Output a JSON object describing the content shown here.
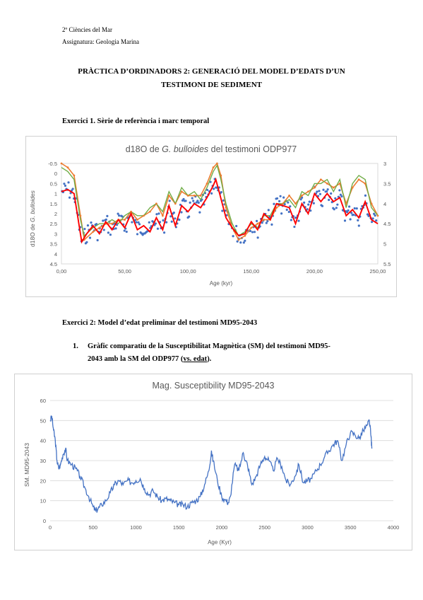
{
  "header": {
    "line1": "2º Ciències del Mar",
    "line2": "Assignatura: Geologia Marina"
  },
  "doc_title": {
    "line1": "PRÀCTICA D’ORDINADORS 2: GENERACIÓ DEL MODEL D’EDATS D’UN",
    "line2": "TESTIMONI DE SEDIMENT"
  },
  "ex1": {
    "heading": "Exercici 1. Sèrie de referència i marc temporal"
  },
  "ex2": {
    "heading": "Exercici 2: Model d’edat preliminar del testimoni MD95-2043",
    "item_number": "1.",
    "item_text_line1": "Gràfic comparatiu de la Susceptibilitat Magnètica (SM) del testimoni MD95-",
    "item_text_line2_a": "2043 amb la SM del ODP977 (",
    "item_text_line2_u": "vs. edat",
    "item_text_line2_b": ")."
  },
  "chart_data": [
    {
      "type": "scatter",
      "title_pre": "d18O de ",
      "title_italic": "G. bulloides",
      "title_post": " del testimoni ODP977",
      "xlabel": "Age (kyr)",
      "ylabel_pre": "d18O de ",
      "ylabel_italic": "G. bulloides",
      "xlim": [
        0,
        250
      ],
      "x_ticks": [
        "0,00",
        "50,00",
        "100,00",
        "150,00",
        "200,00",
        "250,00"
      ],
      "ylim_left": [
        -0.5,
        4.5
      ],
      "y_left_ticks": [
        "-0.5",
        "0",
        "0.5",
        "1",
        "1.5",
        "2",
        "2.5",
        "3",
        "3.5",
        "4",
        "4.5"
      ],
      "ylim_right": [
        3,
        5.5
      ],
      "y_right_ticks": [
        "3",
        "3.5",
        "4",
        "4.5",
        "5",
        "5.5"
      ],
      "colors": {
        "points": "#4472c4",
        "smooth": "#ff0000",
        "orange": "#ed7d31",
        "green": "#70ad47"
      },
      "series_smooth": [
        [
          0,
          0.9
        ],
        [
          5,
          0.8
        ],
        [
          10,
          1.0
        ],
        [
          13,
          2.2
        ],
        [
          16,
          3.4
        ],
        [
          20,
          3.0
        ],
        [
          25,
          2.6
        ],
        [
          30,
          3.0
        ],
        [
          35,
          2.4
        ],
        [
          40,
          2.8
        ],
        [
          45,
          2.3
        ],
        [
          50,
          2.7
        ],
        [
          55,
          2.0
        ],
        [
          60,
          2.8
        ],
        [
          65,
          2.6
        ],
        [
          70,
          2.9
        ],
        [
          75,
          2.2
        ],
        [
          80,
          2.8
        ],
        [
          85,
          1.6
        ],
        [
          90,
          2.6
        ],
        [
          95,
          1.6
        ],
        [
          100,
          1.9
        ],
        [
          105,
          1.5
        ],
        [
          110,
          1.7
        ],
        [
          115,
          1.2
        ],
        [
          120,
          0.6
        ],
        [
          122,
          0.3
        ],
        [
          125,
          1.0
        ],
        [
          130,
          2.2
        ],
        [
          135,
          2.7
        ],
        [
          140,
          3.1
        ],
        [
          145,
          3.0
        ],
        [
          150,
          2.4
        ],
        [
          155,
          2.8
        ],
        [
          160,
          2.0
        ],
        [
          165,
          2.3
        ],
        [
          170,
          1.5
        ],
        [
          175,
          1.6
        ],
        [
          180,
          1.7
        ],
        [
          185,
          2.5
        ],
        [
          190,
          1.5
        ],
        [
          195,
          2.0
        ],
        [
          200,
          1.0
        ],
        [
          205,
          1.4
        ],
        [
          210,
          1.0
        ],
        [
          215,
          1.4
        ],
        [
          220,
          1.2
        ],
        [
          225,
          2.1
        ],
        [
          230,
          1.8
        ],
        [
          235,
          2.2
        ],
        [
          240,
          1.4
        ],
        [
          245,
          2.3
        ],
        [
          250,
          2.5
        ]
      ],
      "series_orange": [
        [
          0,
          3.0
        ],
        [
          5,
          3.1
        ],
        [
          10,
          3.3
        ],
        [
          15,
          4.3
        ],
        [
          18,
          4.9
        ],
        [
          25,
          4.7
        ],
        [
          30,
          4.6
        ],
        [
          35,
          4.5
        ],
        [
          40,
          4.5
        ],
        [
          45,
          4.4
        ],
        [
          50,
          4.4
        ],
        [
          55,
          4.2
        ],
        [
          60,
          4.4
        ],
        [
          65,
          4.3
        ],
        [
          70,
          4.2
        ],
        [
          75,
          4.0
        ],
        [
          80,
          4.3
        ],
        [
          85,
          3.8
        ],
        [
          90,
          4.0
        ],
        [
          95,
          3.7
        ],
        [
          100,
          3.8
        ],
        [
          105,
          3.8
        ],
        [
          110,
          3.8
        ],
        [
          115,
          3.5
        ],
        [
          120,
          3.1
        ],
        [
          123,
          3.0
        ],
        [
          126,
          3.3
        ],
        [
          130,
          4.1
        ],
        [
          135,
          4.6
        ],
        [
          140,
          4.9
        ],
        [
          145,
          4.8
        ],
        [
          150,
          4.6
        ],
        [
          155,
          4.5
        ],
        [
          160,
          4.4
        ],
        [
          165,
          4.4
        ],
        [
          170,
          4.1
        ],
        [
          175,
          4.0
        ],
        [
          180,
          3.8
        ],
        [
          185,
          4.0
        ],
        [
          190,
          3.8
        ],
        [
          195,
          3.7
        ],
        [
          200,
          3.6
        ],
        [
          205,
          3.4
        ],
        [
          210,
          3.5
        ],
        [
          215,
          3.6
        ],
        [
          220,
          3.5
        ],
        [
          225,
          4.0
        ],
        [
          230,
          3.6
        ],
        [
          235,
          3.4
        ],
        [
          240,
          3.5
        ],
        [
          245,
          4.0
        ],
        [
          250,
          4.3
        ]
      ],
      "series_green": [
        [
          0,
          3.1
        ],
        [
          5,
          3.2
        ],
        [
          10,
          3.4
        ],
        [
          15,
          4.4
        ],
        [
          18,
          4.8
        ],
        [
          25,
          4.6
        ],
        [
          30,
          4.5
        ],
        [
          35,
          4.5
        ],
        [
          40,
          4.4
        ],
        [
          45,
          4.5
        ],
        [
          50,
          4.3
        ],
        [
          55,
          4.2
        ],
        [
          60,
          4.3
        ],
        [
          65,
          4.3
        ],
        [
          70,
          4.1
        ],
        [
          75,
          4.0
        ],
        [
          80,
          4.2
        ],
        [
          85,
          3.7
        ],
        [
          90,
          4.0
        ],
        [
          95,
          3.6
        ],
        [
          100,
          3.8
        ],
        [
          105,
          3.7
        ],
        [
          110,
          3.9
        ],
        [
          115,
          3.6
        ],
        [
          120,
          3.2
        ],
        [
          123,
          3.05
        ],
        [
          126,
          3.4
        ],
        [
          130,
          4.0
        ],
        [
          135,
          4.5
        ],
        [
          140,
          4.8
        ],
        [
          145,
          4.7
        ],
        [
          150,
          4.5
        ],
        [
          155,
          4.6
        ],
        [
          160,
          4.3
        ],
        [
          165,
          4.3
        ],
        [
          170,
          4.0
        ],
        [
          175,
          4.0
        ],
        [
          180,
          3.9
        ],
        [
          185,
          4.1
        ],
        [
          190,
          3.7
        ],
        [
          195,
          3.8
        ],
        [
          200,
          3.5
        ],
        [
          205,
          3.5
        ],
        [
          210,
          3.4
        ],
        [
          215,
          3.7
        ],
        [
          220,
          3.4
        ],
        [
          225,
          4.1
        ],
        [
          230,
          3.5
        ],
        [
          235,
          3.3
        ],
        [
          240,
          3.4
        ],
        [
          245,
          4.1
        ],
        [
          250,
          4.3
        ]
      ]
    },
    {
      "type": "line",
      "title": "Mag. Susceptibility MD95-2043",
      "xlabel": "Age (Kyr)",
      "ylabel": "SM. MD95-2043",
      "xlim": [
        0,
        4000
      ],
      "x_ticks": [
        "0",
        "500",
        "1000",
        "1500",
        "2000",
        "2500",
        "3000",
        "3500",
        "4000"
      ],
      "ylim": [
        0,
        60
      ],
      "y_ticks": [
        "0",
        "10",
        "20",
        "30",
        "40",
        "50",
        "60"
      ],
      "color": "#4472c4",
      "points": [
        [
          0,
          50
        ],
        [
          20,
          52
        ],
        [
          40,
          45
        ],
        [
          60,
          40
        ],
        [
          80,
          30
        ],
        [
          100,
          26
        ],
        [
          120,
          28
        ],
        [
          150,
          33
        ],
        [
          180,
          36
        ],
        [
          200,
          30
        ],
        [
          250,
          28
        ],
        [
          300,
          26
        ],
        [
          350,
          22
        ],
        [
          400,
          17
        ],
        [
          450,
          12
        ],
        [
          500,
          7
        ],
        [
          530,
          5
        ],
        [
          560,
          6
        ],
        [
          600,
          8
        ],
        [
          650,
          10
        ],
        [
          700,
          14
        ],
        [
          750,
          18
        ],
        [
          800,
          20
        ],
        [
          850,
          18
        ],
        [
          900,
          20
        ],
        [
          950,
          19
        ],
        [
          1000,
          20
        ],
        [
          1050,
          21
        ],
        [
          1100,
          16
        ],
        [
          1150,
          13
        ],
        [
          1200,
          15
        ],
        [
          1250,
          12
        ],
        [
          1300,
          10
        ],
        [
          1350,
          11
        ],
        [
          1400,
          10
        ],
        [
          1450,
          9
        ],
        [
          1500,
          8
        ],
        [
          1550,
          8
        ],
        [
          1600,
          7
        ],
        [
          1650,
          9
        ],
        [
          1700,
          10
        ],
        [
          1750,
          12
        ],
        [
          1800,
          18
        ],
        [
          1850,
          25
        ],
        [
          1880,
          35
        ],
        [
          1900,
          30
        ],
        [
          1950,
          20
        ],
        [
          2000,
          12
        ],
        [
          2050,
          10
        ],
        [
          2080,
          9
        ],
        [
          2100,
          12
        ],
        [
          2150,
          28
        ],
        [
          2200,
          25
        ],
        [
          2250,
          34
        ],
        [
          2280,
          30
        ],
        [
          2300,
          28
        ],
        [
          2350,
          18
        ],
        [
          2400,
          22
        ],
        [
          2450,
          28
        ],
        [
          2500,
          32
        ],
        [
          2550,
          30
        ],
        [
          2600,
          25
        ],
        [
          2650,
          31
        ],
        [
          2700,
          27
        ],
        [
          2750,
          20
        ],
        [
          2800,
          18
        ],
        [
          2850,
          22
        ],
        [
          2900,
          28
        ],
        [
          2950,
          19
        ],
        [
          3000,
          20
        ],
        [
          3050,
          21
        ],
        [
          3100,
          25
        ],
        [
          3150,
          28
        ],
        [
          3200,
          32
        ],
        [
          3250,
          35
        ],
        [
          3300,
          38
        ],
        [
          3350,
          40
        ],
        [
          3400,
          30
        ],
        [
          3450,
          38
        ],
        [
          3500,
          44
        ],
        [
          3550,
          43
        ],
        [
          3600,
          41
        ],
        [
          3650,
          45
        ],
        [
          3700,
          48
        ],
        [
          3720,
          50
        ],
        [
          3740,
          42
        ],
        [
          3750,
          36
        ]
      ]
    }
  ]
}
